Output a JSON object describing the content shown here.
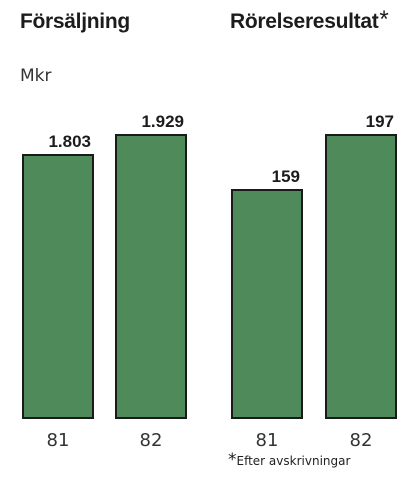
{
  "chart_data": [
    {
      "type": "bar",
      "title": "Försäljning",
      "unit": "Mkr",
      "categories": [
        "81",
        "82"
      ],
      "values": [
        1803,
        1929
      ],
      "value_labels": [
        "1.803",
        "1.929"
      ],
      "bar_color": "#4f8a5a"
    },
    {
      "type": "bar",
      "title": "Rörelseresultat",
      "title_marker": "*",
      "categories": [
        "81",
        "82"
      ],
      "values": [
        159,
        197
      ],
      "value_labels": [
        "159",
        "197"
      ],
      "bar_color": "#4f8a5a"
    }
  ],
  "footnote": {
    "marker": "*",
    "text": "Efter avskrivningar"
  }
}
